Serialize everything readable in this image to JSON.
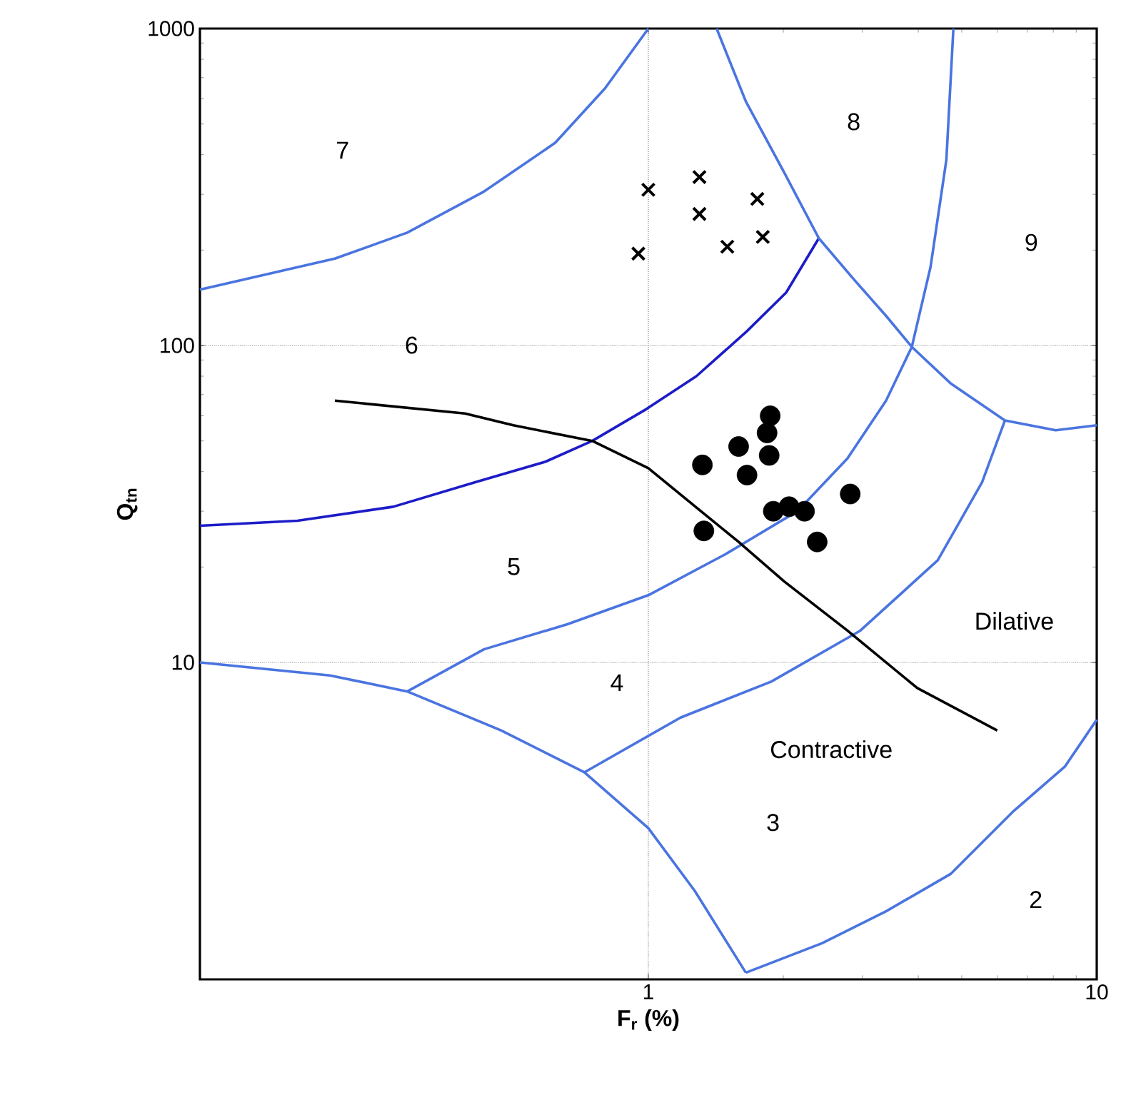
{
  "chart_data": {
    "type": "scatter",
    "xlabel": "**F$_{r}$ (%)**",
    "ylabel": "**Q$_{tn}$**",
    "log": "xy",
    "xlim": [
      0.1,
      10
    ],
    "ylim": [
      1,
      1000
    ],
    "xticks": [
      1,
      10
    ],
    "yticks": [
      10,
      100,
      1000
    ],
    "grid": true,
    "series": [
      {
        "marker": "cross",
        "color": "#000000",
        "x": [
          1.0,
          1.3,
          1.3,
          1.75,
          1.5,
          1.8,
          0.95
        ],
        "values": [
          310,
          340,
          260,
          290,
          205,
          220,
          195
        ]
      },
      {
        "marker": "circle",
        "color": "#000000",
        "x": [
          1.87,
          1.84,
          1.59,
          1.86,
          1.32,
          1.66,
          2.82,
          1.9,
          2.06,
          2.23,
          1.33,
          2.38
        ],
        "values": [
          60,
          53,
          48,
          45,
          42,
          39,
          34,
          30,
          31,
          30,
          26,
          24
        ]
      },
      {
        "type": "line",
        "marker": "none",
        "line_style": "solid",
        "color": "#4a74e0",
        "x": [
          0.1,
          0.2,
          0.29,
          0.43,
          0.62,
          0.8,
          1.0
        ],
        "values": [
          150,
          188,
          227,
          306,
          436,
          647,
          1000
        ]
      },
      {
        "type": "line",
        "marker": "none",
        "line_style": "solid",
        "color": "#1c1cc8",
        "x": [
          0.1,
          0.165,
          0.27,
          0.41,
          0.59,
          0.75,
          0.99,
          1.28,
          1.66,
          2.03,
          2.4
        ],
        "values": [
          27,
          28,
          31,
          37,
          43,
          50,
          63,
          80,
          111,
          147,
          218
        ]
      },
      {
        "type": "line",
        "marker": "none",
        "line_style": "solid",
        "color": "#4a74e0",
        "x": [
          1.42,
          1.65,
          2.01,
          2.4,
          2.88,
          3.39,
          3.87,
          4.72,
          6.24,
          8.1,
          10
        ],
        "values": [
          1000,
          589,
          351,
          218,
          161,
          124,
          99,
          76,
          58,
          54,
          56
        ]
      },
      {
        "type": "line",
        "marker": "none",
        "line_style": "solid",
        "color": "#4a74e0",
        "x": [
          4.79,
          4.62,
          4.26,
          3.87,
          3.39,
          2.78,
          2.15,
          1.49,
          1.0,
          0.66,
          0.43,
          0.29
        ],
        "values": [
          1000,
          385,
          177,
          99,
          67,
          44,
          30,
          22,
          16.3,
          13.2,
          11,
          8.1
        ]
      },
      {
        "type": "line",
        "marker": "none",
        "line_style": "solid",
        "color": "#4a74e0",
        "x": [
          6.24,
          5.55,
          4.42,
          2.97,
          1.88,
          1.18,
          0.72
        ],
        "values": [
          58,
          37,
          21,
          12.6,
          8.7,
          6.7,
          4.5
        ]
      },
      {
        "type": "line",
        "marker": "none",
        "line_style": "solid",
        "color": "#4a74e0",
        "x": [
          0.1,
          0.195,
          0.29,
          0.47,
          0.72,
          1.0,
          1.27,
          1.65
        ],
        "values": [
          10,
          9.1,
          8.1,
          6.1,
          4.5,
          3.0,
          1.9,
          1.05
        ]
      },
      {
        "type": "line",
        "marker": "none",
        "line_style": "solid",
        "color": "#4a74e0",
        "x": [
          1.65,
          2.44,
          3.39,
          4.72,
          6.53,
          8.5,
          10
        ],
        "values": [
          1.05,
          1.3,
          1.64,
          2.15,
          3.4,
          4.7,
          6.6
        ]
      },
      {
        "type": "line",
        "marker": "none",
        "line_style": "solid",
        "color": "#000000",
        "x": [
          0.2,
          0.39,
          0.5,
          0.75,
          1.0,
          1.31,
          1.59,
          2.01,
          2.78,
          3.98,
          6.0
        ],
        "values": [
          67,
          61,
          56,
          50,
          41,
          30,
          24,
          18,
          12.6,
          8.3,
          6.1
        ]
      }
    ],
    "annotations": [
      "7",
      "8",
      "9",
      "6",
      "5",
      "4",
      "3",
      "2",
      "Dilative",
      "Contractive"
    ]
  }
}
